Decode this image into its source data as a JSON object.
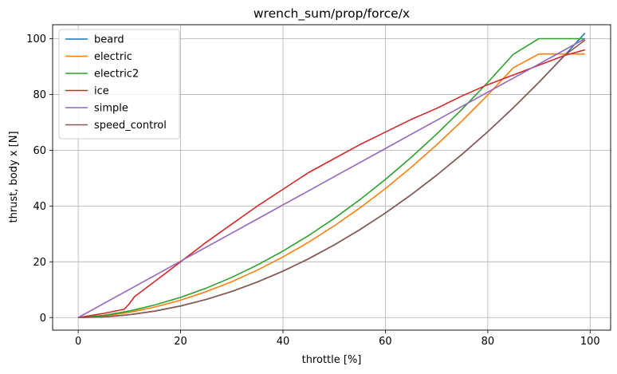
{
  "chart_data": {
    "type": "line",
    "title": "wrench_sum/prop/force/x",
    "xlabel": "throttle [%]",
    "ylabel": "thrust, body x [N]",
    "xlim": [
      -5,
      104
    ],
    "ylim": [
      -4.5,
      105
    ],
    "xticks": [
      0,
      20,
      40,
      60,
      80,
      100
    ],
    "yticks": [
      0,
      20,
      40,
      60,
      80,
      100
    ],
    "grid": true,
    "legend_position": "top-left",
    "x": [
      0,
      5,
      9,
      10,
      11,
      15,
      20,
      25,
      30,
      35,
      40,
      45,
      50,
      55,
      60,
      65,
      70,
      75,
      80,
      85,
      90,
      95,
      99
    ],
    "series": [
      {
        "name": "beard",
        "color": "#1f77b4",
        "values": [
          0,
          0.26,
          0.84,
          1.04,
          1.26,
          2.34,
          4.16,
          6.51,
          9.37,
          12.76,
          16.66,
          21.09,
          26.03,
          31.5,
          37.49,
          44.0,
          51.02,
          58.57,
          66.64,
          75.24,
          84.35,
          93.98,
          102.0
        ]
      },
      {
        "name": "electric",
        "color": "#ff7f0e",
        "values": [
          0,
          0.6,
          1.58,
          1.89,
          2.23,
          3.79,
          6.25,
          9.28,
          12.87,
          17.03,
          21.75,
          27.03,
          32.88,
          39.29,
          46.26,
          53.81,
          61.9,
          70.57,
          79.8,
          89.59,
          94.5,
          94.5,
          94.5
        ]
      },
      {
        "name": "electric2",
        "color": "#2ca02c",
        "values": [
          0,
          0.8,
          2.02,
          2.38,
          2.77,
          4.55,
          7.27,
          10.56,
          14.42,
          18.85,
          23.85,
          29.41,
          35.55,
          42.25,
          49.53,
          57.37,
          65.78,
          74.76,
          84.31,
          94.42,
          100.0,
          100.0,
          100.0
        ]
      },
      {
        "name": "ice",
        "color": "#d62728",
        "values": [
          0,
          1.5,
          3.0,
          5.0,
          7.5,
          13.0,
          20.0,
          27.0,
          33.5,
          40.0,
          46.0,
          52.0,
          57.0,
          62.0,
          66.5,
          71.0,
          75.0,
          79.5,
          83.5,
          87.0,
          90.5,
          94.0,
          96.0
        ]
      },
      {
        "name": "simple",
        "color": "#9467bd",
        "values": [
          0,
          5.05,
          9.09,
          10.1,
          11.11,
          15.15,
          20.2,
          25.25,
          30.3,
          35.35,
          40.4,
          45.45,
          50.51,
          55.56,
          60.61,
          65.66,
          70.71,
          75.76,
          80.81,
          85.86,
          90.91,
          95.96,
          100.0
        ]
      },
      {
        "name": "speed_control",
        "color": "#8c564b",
        "values": [
          0,
          0.26,
          0.84,
          1.04,
          1.26,
          2.34,
          4.16,
          6.51,
          9.37,
          12.76,
          16.66,
          21.09,
          26.03,
          31.5,
          37.49,
          44.0,
          51.02,
          58.57,
          66.64,
          75.24,
          84.35,
          93.98,
          99.5
        ]
      }
    ]
  }
}
